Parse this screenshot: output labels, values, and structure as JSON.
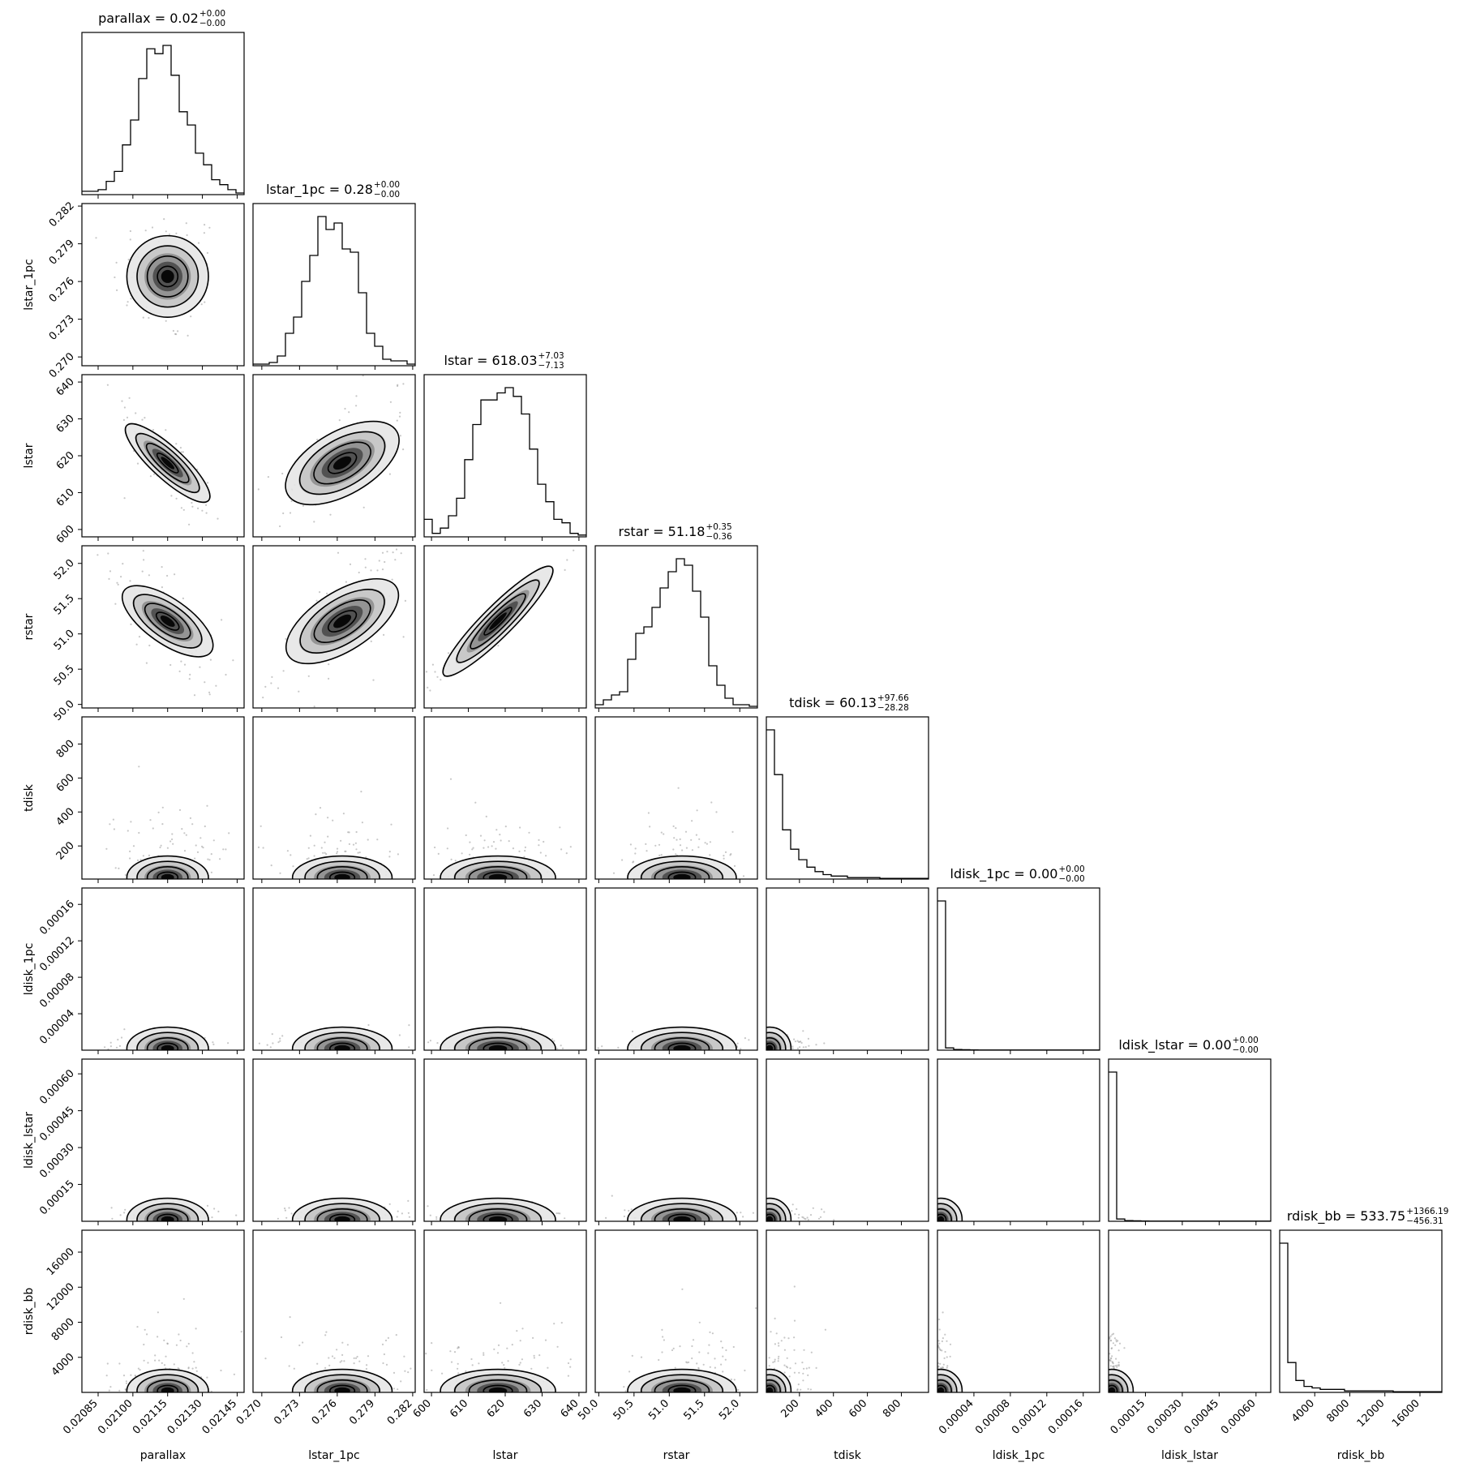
{
  "chart_data": {
    "type": "corner",
    "parameters": [
      {
        "name": "parallax",
        "median": 0.02115,
        "sigma": 8e-05,
        "skew": false,
        "range": [
          0.02078,
          0.02148
        ],
        "ticks": [
          0.02085,
          0.021,
          0.02115,
          0.0213,
          0.02145
        ],
        "tick_labels": [
          "0.02085",
          "0.02100",
          "0.02115",
          "0.02130",
          "0.02145"
        ],
        "title": {
          "base": "parallax = 0.02",
          "sup": "+0.00",
          "sub": "−0.00"
        }
      },
      {
        "name": "lstar_1pc",
        "median": 0.2764,
        "sigma": 0.0018,
        "skew": false,
        "range": [
          0.2693,
          0.2822
        ],
        "ticks": [
          0.27,
          0.273,
          0.276,
          0.279,
          0.282
        ],
        "tick_labels": [
          "0.270",
          "0.273",
          "0.276",
          "0.279",
          "0.282"
        ],
        "title": {
          "base": "lstar_1pc = 0.28",
          "sup": "+0.00",
          "sub": "−0.00"
        }
      },
      {
        "name": "lstar",
        "median": 618.03,
        "sigma": 7.1,
        "skew": false,
        "range": [
          598,
          642
        ],
        "ticks": [
          600,
          610,
          620,
          630,
          640
        ],
        "tick_labels": [
          "600",
          "610",
          "620",
          "630",
          "640"
        ],
        "title": {
          "base": "lstar = 618.03",
          "sup": "+7.03",
          "sub": "−7.13"
        }
      },
      {
        "name": "rstar",
        "median": 51.18,
        "sigma": 0.35,
        "skew": false,
        "range": [
          49.95,
          52.25
        ],
        "ticks": [
          50.0,
          50.5,
          51.0,
          51.5,
          52.0
        ],
        "tick_labels": [
          "50.0",
          "50.5",
          "51.0",
          "51.5",
          "52.0"
        ],
        "title": {
          "base": "rstar = 51.18",
          "sup": "+0.35",
          "sub": "−0.36"
        }
      },
      {
        "name": "tdisk",
        "median": 60.13,
        "sigma": 60,
        "skew": true,
        "range": [
          5,
          960
        ],
        "ticks": [
          200,
          400,
          600,
          800
        ],
        "tick_labels": [
          "200",
          "400",
          "600",
          "800"
        ],
        "title": {
          "base": "tdisk = 60.13",
          "sup": "+97.66",
          "sub": "−28.28"
        }
      },
      {
        "name": "ldisk_1pc",
        "median": 1.5e-06,
        "sigma": 3e-06,
        "skew": true,
        "range": [
          0.0,
          0.000178
        ],
        "ticks": [
          4e-05,
          8e-05,
          0.00012,
          0.00016
        ],
        "tick_labels": [
          "0.00004",
          "0.00008",
          "0.00012",
          "0.00016"
        ],
        "title": {
          "base": "ldisk_1pc = 0.00",
          "sup": "+0.00",
          "sub": "−0.00"
        }
      },
      {
        "name": "ldisk_lstar",
        "median": 5e-06,
        "sigma": 1e-05,
        "skew": true,
        "range": [
          0.0,
          0.00066
        ],
        "ticks": [
          0.00015,
          0.0003,
          0.00045,
          0.0006
        ],
        "tick_labels": [
          "0.00015",
          "0.00030",
          "0.00045",
          "0.00060"
        ],
        "title": {
          "base": "ldisk_lstar = 0.00",
          "sup": "+0.00",
          "sub": "−0.00"
        }
      },
      {
        "name": "rdisk_bb",
        "median": 533.75,
        "sigma": 1200,
        "skew": true,
        "range": [
          0,
          18500
        ],
        "ticks": [
          4000,
          8000,
          12000,
          16000
        ],
        "tick_labels": [
          "4000",
          "8000",
          "12000",
          "16000"
        ],
        "title": {
          "base": "rdisk_bb = 533.75",
          "sup": "+1366.19",
          "sub": "−456.31"
        }
      }
    ],
    "histograms_1d": [
      {
        "param": "parallax",
        "counts": [
          2,
          2,
          3,
          8,
          14,
          30,
          45,
          70,
          88,
          85,
          90,
          72,
          50,
          42,
          25,
          18,
          9,
          6,
          3,
          1
        ]
      },
      {
        "param": "lstar_1pc",
        "counts": [
          1,
          1,
          2,
          6,
          20,
          30,
          52,
          68,
          92,
          84,
          88,
          72,
          70,
          45,
          20,
          12,
          4,
          3,
          3,
          1
        ]
      },
      {
        "param": "lstar",
        "counts": [
          10,
          2,
          5,
          12,
          22,
          44,
          64,
          78,
          78,
          82,
          85,
          80,
          70,
          50,
          30,
          20,
          10,
          8,
          2,
          1
        ]
      },
      {
        "param": "rstar",
        "counts": [
          2,
          5,
          8,
          10,
          30,
          46,
          50,
          62,
          74,
          84,
          92,
          88,
          72,
          56,
          26,
          14,
          6,
          2,
          2,
          1
        ]
      },
      {
        "param": "tdisk",
        "counts": [
          100,
          70,
          33,
          20,
          13,
          8,
          5,
          3,
          2,
          2,
          1,
          1,
          1,
          1,
          0.5,
          0.5,
          0.5,
          0.5,
          0.5,
          0.5
        ]
      },
      {
        "param": "ldisk_1pc",
        "counts": [
          100,
          1.5,
          0.5,
          0.3,
          0.2,
          0.1,
          0.1,
          0.1,
          0.1,
          0.1,
          0.1,
          0.1,
          0.1,
          0.1,
          0.1,
          0.1,
          0.1,
          0.1,
          0.1,
          0.1
        ]
      },
      {
        "param": "ldisk_lstar",
        "counts": [
          100,
          1.5,
          0.5,
          0.3,
          0.2,
          0.1,
          0.1,
          0.1,
          0.1,
          0.1,
          0.1,
          0.1,
          0.1,
          0.1,
          0.1,
          0.1,
          0.1,
          0.1,
          0.1,
          0.1
        ]
      },
      {
        "param": "rdisk_bb",
        "counts": [
          100,
          20,
          8,
          4,
          3,
          2,
          2,
          2,
          1,
          1,
          1,
          1,
          1,
          1,
          0.5,
          0.5,
          0.5,
          0.5,
          0.5,
          0.5
        ]
      }
    ],
    "correlations": [
      {
        "pair": [
          "parallax",
          "lstar"
        ],
        "rho": -0.85
      },
      {
        "pair": [
          "parallax",
          "rstar"
        ],
        "rho": -0.7
      },
      {
        "pair": [
          "lstar_1pc",
          "lstar"
        ],
        "rho": 0.6
      },
      {
        "pair": [
          "lstar_1pc",
          "rstar"
        ],
        "rho": 0.65
      },
      {
        "pair": [
          "lstar",
          "rstar"
        ],
        "rho": 0.97
      }
    ],
    "contour_levels_sigma": [
      0.5,
      1.0,
      1.5,
      2.0
    ],
    "grid": false,
    "legend": "none"
  }
}
